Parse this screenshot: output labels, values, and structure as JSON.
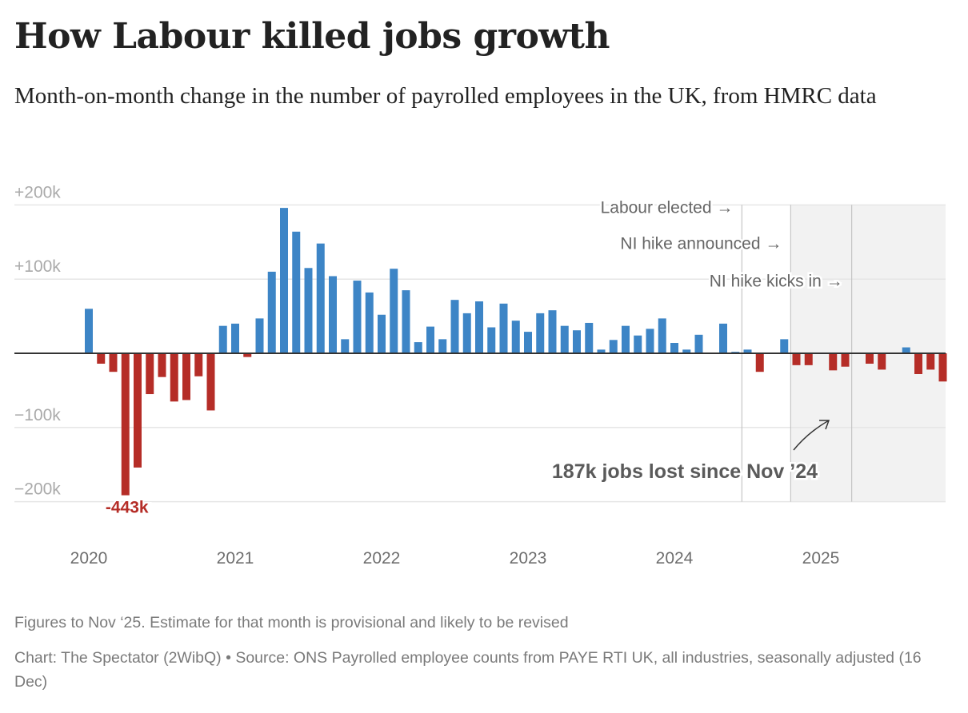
{
  "header": {
    "title": "How Labour killed jobs growth",
    "subtitle": "Month-on-month change in the number of payrolled employees in the UK, from HMRC data"
  },
  "chart_data": {
    "type": "bar",
    "title": "How Labour killed jobs growth",
    "subtitle": "Month-on-month change in the number of payrolled employees in the UK, from HMRC data",
    "xlabel": "",
    "ylabel": "",
    "units": "thousands of employees",
    "ylim": [
      -200,
      200
    ],
    "yticks": [
      200,
      100,
      0,
      -100,
      -200
    ],
    "ytick_labels": [
      "+200k",
      "+100k",
      "",
      "−100k",
      "−200k"
    ],
    "grid": true,
    "start_month": "2020-01",
    "xtick_labels": [
      "2020",
      "2021",
      "2022",
      "2023",
      "2024",
      "2025"
    ],
    "xtick_month_index": [
      0,
      12,
      24,
      36,
      48,
      60
    ],
    "colors": {
      "positive": "#3d85c6",
      "negative": "#b52d27",
      "baseline": "#333333",
      "grid": "#e6e6e6",
      "shade": "#f2f2f2",
      "event_line": "#c4c4c4"
    },
    "categories": [
      "Jan 2020",
      "Feb 2020",
      "Mar 2020",
      "Apr 2020",
      "May 2020",
      "Jun 2020",
      "Jul 2020",
      "Aug 2020",
      "Sep 2020",
      "Oct 2020",
      "Nov 2020",
      "Dec 2020",
      "Jan 2021",
      "Feb 2021",
      "Mar 2021",
      "Apr 2021",
      "May 2021",
      "Jun 2021",
      "Jul 2021",
      "Aug 2021",
      "Sep 2021",
      "Oct 2021",
      "Nov 2021",
      "Dec 2021",
      "Jan 2022",
      "Feb 2022",
      "Mar 2022",
      "Apr 2022",
      "May 2022",
      "Jun 2022",
      "Jul 2022",
      "Aug 2022",
      "Sep 2022",
      "Oct 2022",
      "Nov 2022",
      "Dec 2022",
      "Jan 2023",
      "Feb 2023",
      "Mar 2023",
      "Apr 2023",
      "May 2023",
      "Jun 2023",
      "Jul 2023",
      "Aug 2023",
      "Sep 2023",
      "Oct 2023",
      "Nov 2023",
      "Dec 2023",
      "Jan 2024",
      "Feb 2024",
      "Mar 2024",
      "Apr 2024",
      "May 2024",
      "Jun 2024",
      "Jul 2024",
      "Aug 2024",
      "Sep 2024",
      "Oct 2024",
      "Nov 2024",
      "Dec 2024",
      "Jan 2025",
      "Feb 2025",
      "Mar 2025",
      "Apr 2025",
      "May 2025",
      "Jun 2025",
      "Jul 2025",
      "Aug 2025",
      "Sep 2025",
      "Oct 2025",
      "Nov 2025"
    ],
    "values": [
      60,
      -14,
      -25,
      -443,
      -154,
      -55,
      -32,
      -65,
      -63,
      -31,
      -77,
      37,
      40,
      -5,
      47,
      110,
      196,
      164,
      115,
      148,
      104,
      19,
      98,
      82,
      52,
      114,
      85,
      15,
      36,
      19,
      72,
      54,
      70,
      35,
      67,
      44,
      29,
      54,
      58,
      37,
      31,
      41,
      5,
      18,
      37,
      24,
      33,
      47,
      14,
      5,
      25,
      0,
      40,
      2,
      5,
      -25,
      0,
      19,
      -16,
      -16,
      0,
      -23,
      -18,
      0,
      -14,
      -22,
      0,
      8,
      -28,
      -22,
      -38
    ],
    "min_label": {
      "index": 3,
      "text": "-443k"
    },
    "events": [
      {
        "label": "Labour elected →",
        "month_index": 54
      },
      {
        "label": "NI hike announced →",
        "month_index": 58
      },
      {
        "label": "NI hike kicks in →",
        "month_index": 63
      }
    ],
    "shaded_from_month_index": 58,
    "annotation": "187k jobs lost since Nov ’24"
  },
  "footer": {
    "note": "Figures to Nov ‘25. Estimate for that month is provisional and likely to be revised",
    "source": "Chart: The Spectator (2WibQ) • Source: ONS Payrolled employee counts from PAYE RTI UK, all industries, seasonally adjusted (16 Dec)"
  }
}
